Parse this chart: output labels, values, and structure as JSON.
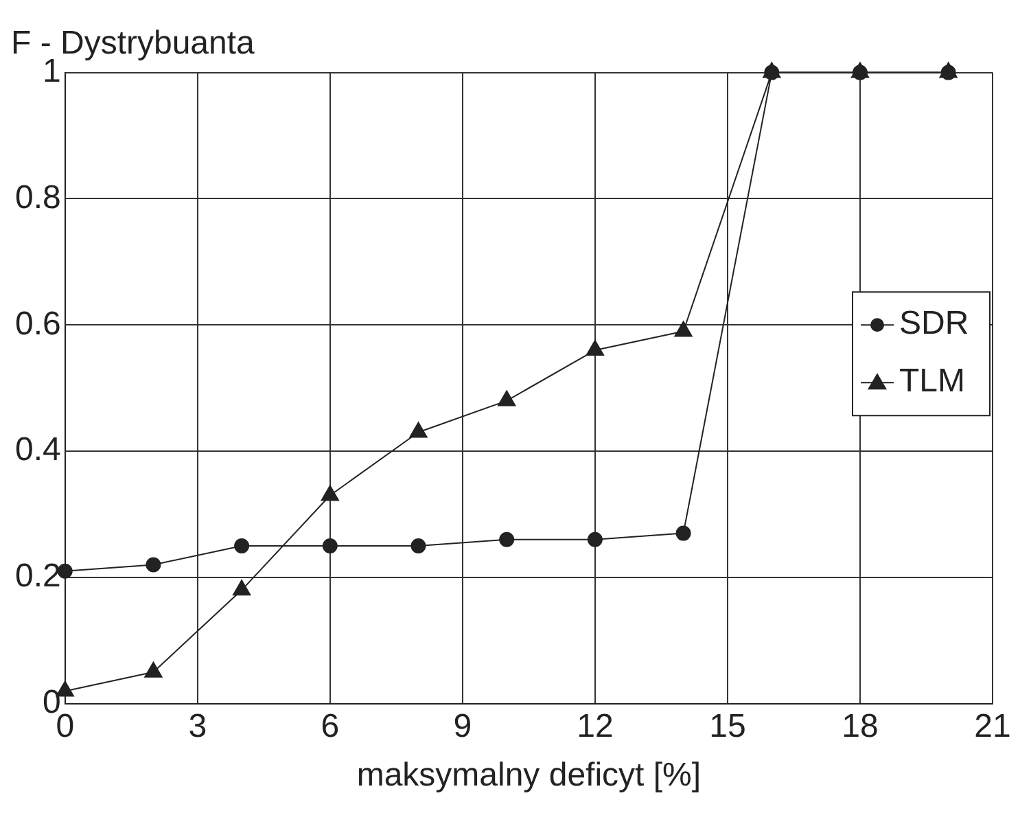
{
  "chart_data": {
    "type": "line",
    "ylabel": "F - Dystrybuanta",
    "xlabel": "maksymalny deficyt [%]",
    "x": [
      0,
      2,
      4,
      6,
      8,
      10,
      12,
      14,
      16,
      18,
      20
    ],
    "series": [
      {
        "name": "SDR",
        "color": "#222222",
        "marker": "circle",
        "values": [
          0.21,
          0.22,
          0.25,
          0.25,
          0.25,
          0.26,
          0.26,
          0.27,
          1,
          1,
          1
        ]
      },
      {
        "name": "TLM",
        "color": "#222222",
        "marker": "triangle",
        "values": [
          0.02,
          0.05,
          0.18,
          0.33,
          0.43,
          0.48,
          0.56,
          0.59,
          1,
          1,
          1
        ]
      }
    ],
    "xlim": [
      0,
      21
    ],
    "xticks": [
      0,
      3,
      6,
      9,
      12,
      15,
      18,
      21
    ],
    "ylim": [
      0,
      1
    ],
    "yticks": [
      0,
      0.2,
      0.4,
      0.6,
      0.8,
      1
    ],
    "grid": true,
    "legend": "right"
  }
}
